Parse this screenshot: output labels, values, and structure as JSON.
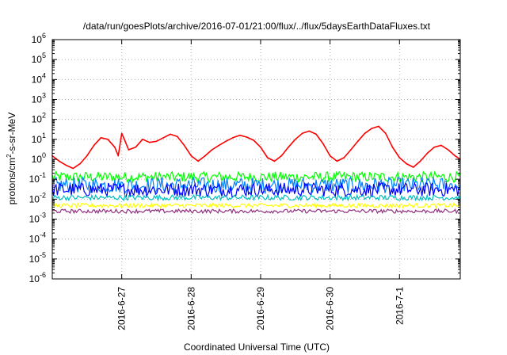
{
  "chart_data": {
    "type": "line",
    "title": "/data/run/goesPlots/archive/2016-07-01/21:00/flux/../flux/5daysEarthDataFluxes.txt",
    "xlabel": "Coordinated Universal Time (UTC)",
    "ylabel": {
      "base": "protons/cm",
      "sup": "2",
      "rest": "-s-sr-MeV"
    },
    "y_scale": "log",
    "ylim": [
      1e-06,
      1000000.0
    ],
    "xlim": [
      0.0,
      5.875
    ],
    "x_ticks": [
      {
        "x": 1,
        "label": "2016-6-27"
      },
      {
        "x": 2,
        "label": "2016-6-28"
      },
      {
        "x": 3,
        "label": "2016-6-29"
      },
      {
        "x": 4,
        "label": "2016-6-30"
      },
      {
        "x": 5,
        "label": "2016-7-1"
      }
    ],
    "y_ticks": [
      {
        "v": -6,
        "base": "10",
        "exp": "-6"
      },
      {
        "v": -5,
        "base": "10",
        "exp": "-5"
      },
      {
        "v": -4,
        "base": "10",
        "exp": "-4"
      },
      {
        "v": -3,
        "base": "10",
        "exp": "-3"
      },
      {
        "v": -2,
        "base": "10",
        "exp": "-2"
      },
      {
        "v": -1,
        "base": "10",
        "exp": "-1"
      },
      {
        "v": 0,
        "base": "10",
        "exp": "0"
      },
      {
        "v": 1,
        "base": "10",
        "exp": "1"
      },
      {
        "v": 2,
        "base": "10",
        "exp": "2"
      },
      {
        "v": 3,
        "base": "10",
        "exp": "3"
      },
      {
        "v": 4,
        "base": "10",
        "exp": "4"
      },
      {
        "v": 5,
        "base": "10",
        "exp": "5"
      },
      {
        "v": 6,
        "base": "10",
        "exp": "6"
      }
    ],
    "grid": true,
    "series": [
      {
        "color": "#ff0000",
        "x": [
          0.0,
          0.1,
          0.2,
          0.3,
          0.4,
          0.5,
          0.6,
          0.7,
          0.8,
          0.9,
          0.95,
          1.0,
          1.05,
          1.1,
          1.2,
          1.3,
          1.4,
          1.5,
          1.6,
          1.7,
          1.8,
          1.9,
          2.0,
          2.1,
          2.2,
          2.3,
          2.4,
          2.5,
          2.6,
          2.7,
          2.8,
          2.9,
          3.0,
          3.1,
          3.2,
          3.3,
          3.4,
          3.5,
          3.6,
          3.7,
          3.8,
          3.9,
          4.0,
          4.1,
          4.2,
          4.3,
          4.4,
          4.5,
          4.6,
          4.7,
          4.8,
          4.9,
          5.0,
          5.1,
          5.2,
          5.3,
          5.4,
          5.5,
          5.6,
          5.7,
          5.8,
          5.875
        ],
        "y": [
          1.5,
          0.8,
          0.5,
          0.35,
          0.6,
          1.5,
          5,
          12,
          10,
          4,
          1.5,
          20,
          8,
          3,
          4,
          10,
          7,
          8,
          12,
          18,
          14,
          5,
          1.5,
          0.8,
          1.5,
          3,
          5,
          8,
          12,
          16,
          13,
          9,
          4,
          1.2,
          0.8,
          1.5,
          4,
          10,
          20,
          26,
          18,
          6,
          1.5,
          0.8,
          1.2,
          3,
          8,
          20,
          35,
          45,
          20,
          4,
          1.2,
          0.6,
          0.4,
          0.8,
          2,
          4,
          5,
          3,
          1.5,
          1.0
        ]
      },
      {
        "color": "#00ff00",
        "base": 0.13,
        "amp": 0.12
      },
      {
        "color": "#0080ff",
        "base": 0.05,
        "amp": 0.18
      },
      {
        "color": "#0000ff",
        "base": 0.03,
        "amp": 0.16
      },
      {
        "color": "#00c0c0",
        "base": 0.012,
        "amp": 0.06
      },
      {
        "color": "#ffff00",
        "base": 0.0048,
        "amp": 0.05
      },
      {
        "color": "#903080",
        "base": 0.0025,
        "amp": 0.045
      }
    ]
  }
}
